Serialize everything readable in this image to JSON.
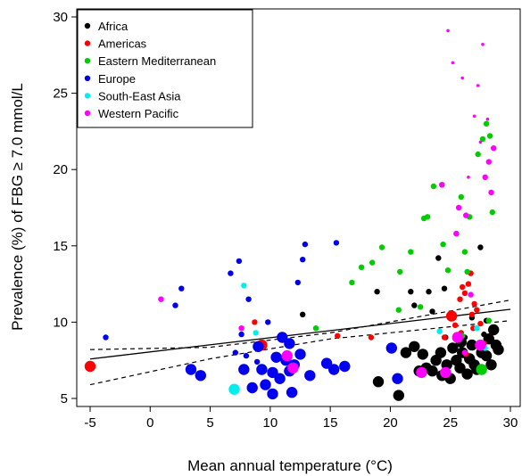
{
  "chart_data": {
    "type": "scatter",
    "title": "",
    "xlabel": "Mean annual temperature (°C)",
    "ylabel": "Prevalence (%) of FBG ≥ 7.0 mmol/L",
    "xlim": [
      -5,
      30
    ],
    "ylim": [
      5,
      30
    ],
    "xticks": [
      "-5",
      "0",
      "5",
      "10",
      "15",
      "20",
      "25",
      "30"
    ],
    "yticks": [
      "5",
      "10",
      "15",
      "20",
      "25",
      "30"
    ],
    "grid": false,
    "legend_position": "top-left",
    "regression": {
      "type": "linear",
      "intercept": 8.05,
      "slope": 0.093,
      "ci_lower": [
        [
          -5,
          5.9
        ],
        [
          5,
          7.6
        ],
        [
          15,
          8.9
        ],
        [
          30,
          10.1
        ]
      ],
      "ci_upper": [
        [
          -5,
          8.2
        ],
        [
          5,
          8.35
        ],
        [
          15,
          9.3
        ],
        [
          30,
          11.45
        ]
      ]
    },
    "series": [
      {
        "name": "Africa",
        "color": "#000000",
        "points": [
          [
            12.7,
            10.5,
            1
          ],
          [
            18.9,
            12.0,
            1
          ],
          [
            19.0,
            6.1,
            2
          ],
          [
            20.7,
            5.2,
            2
          ],
          [
            21.3,
            8.0,
            2
          ],
          [
            21.7,
            12.0,
            1
          ],
          [
            22.0,
            8.4,
            2
          ],
          [
            22.0,
            11.1,
            1
          ],
          [
            22.4,
            6.8,
            2
          ],
          [
            22.7,
            7.9,
            2
          ],
          [
            23.0,
            7.0,
            2
          ],
          [
            23.2,
            12.0,
            1
          ],
          [
            23.5,
            6.8,
            2
          ],
          [
            23.8,
            7.5,
            2
          ],
          [
            24.0,
            14.2,
            1
          ],
          [
            24.2,
            8.0,
            2
          ],
          [
            24.3,
            6.5,
            2
          ],
          [
            24.5,
            12.2,
            1
          ],
          [
            24.7,
            7.2,
            2
          ],
          [
            25.0,
            6.3,
            2
          ],
          [
            25.2,
            8.3,
            2
          ],
          [
            25.5,
            7.5,
            2
          ],
          [
            25.8,
            7.0,
            2
          ],
          [
            26.0,
            8.0,
            2
          ],
          [
            26.2,
            9.0,
            1
          ],
          [
            26.4,
            6.6,
            2
          ],
          [
            26.6,
            7.6,
            2
          ],
          [
            26.8,
            8.5,
            2
          ],
          [
            27.0,
            7.2,
            2
          ],
          [
            27.2,
            6.9,
            2
          ],
          [
            27.5,
            14.9,
            1
          ],
          [
            27.6,
            8.0,
            2
          ],
          [
            27.8,
            9.2,
            1
          ],
          [
            28.0,
            7.8,
            2
          ],
          [
            28.2,
            8.9,
            2
          ],
          [
            28.4,
            7.2,
            2
          ],
          [
            28.6,
            9.5,
            2
          ],
          [
            28.8,
            8.5,
            2
          ],
          [
            29.0,
            8.2,
            2
          ],
          [
            25.9,
            8.7,
            2
          ],
          [
            26.8,
            10.3,
            1
          ],
          [
            24.6,
            9.0,
            1
          ],
          [
            23.5,
            10.7,
            1
          ],
          [
            28.0,
            10.1,
            1
          ]
        ]
      },
      {
        "name": "Americas",
        "color": "#ff0000",
        "points": [
          [
            -5.0,
            7.1,
            2
          ],
          [
            8.7,
            10.0,
            1
          ],
          [
            9.3,
            8.5,
            2
          ],
          [
            15.6,
            9.1,
            1
          ],
          [
            18.4,
            9.0,
            1
          ],
          [
            24.5,
            9.0,
            1
          ],
          [
            25.1,
            10.4,
            2
          ],
          [
            25.4,
            9.8,
            1
          ],
          [
            25.8,
            11.5,
            1
          ],
          [
            26.0,
            12.3,
            1
          ],
          [
            26.2,
            11.9,
            1
          ],
          [
            26.5,
            12.5,
            1
          ],
          [
            26.7,
            13.2,
            1
          ],
          [
            26.8,
            10.5,
            1
          ],
          [
            27.0,
            11.2,
            1
          ],
          [
            27.2,
            10.8,
            1
          ],
          [
            27.5,
            9.9,
            1
          ],
          [
            25.9,
            9.3,
            1
          ],
          [
            26.3,
            7.9,
            1
          ],
          [
            26.9,
            9.6,
            1
          ],
          [
            27.8,
            8.6,
            1
          ]
        ]
      },
      {
        "name": "Eastern Mediterranean",
        "color": "#00cc00",
        "points": [
          [
            13.8,
            9.6,
            1
          ],
          [
            16.8,
            12.6,
            1
          ],
          [
            17.6,
            13.6,
            1
          ],
          [
            18.5,
            13.9,
            1
          ],
          [
            19.3,
            14.9,
            1
          ],
          [
            20.8,
            13.3,
            1
          ],
          [
            20.7,
            10.8,
            1
          ],
          [
            21.7,
            14.6,
            1
          ],
          [
            22.8,
            16.8,
            1
          ],
          [
            23.1,
            16.9,
            1
          ],
          [
            23.6,
            18.9,
            1
          ],
          [
            24.3,
            19.0,
            1
          ],
          [
            24.4,
            15.1,
            1
          ],
          [
            24.8,
            13.4,
            1
          ],
          [
            25.5,
            15.8,
            1
          ],
          [
            25.9,
            18.2,
            1
          ],
          [
            26.2,
            14.6,
            1
          ],
          [
            26.4,
            13.3,
            1
          ],
          [
            26.6,
            16.9,
            1
          ],
          [
            27.3,
            21.0,
            1
          ],
          [
            27.7,
            22.0,
            1
          ],
          [
            28.0,
            23.0,
            1
          ],
          [
            28.3,
            22.2,
            1
          ],
          [
            28.5,
            17.2,
            1
          ],
          [
            28.2,
            10.1,
            1
          ],
          [
            26.0,
            9.1,
            1
          ],
          [
            27.6,
            6.9,
            2
          ],
          [
            22.5,
            11.0,
            1
          ]
        ]
      },
      {
        "name": "Europe",
        "color": "#0000ee",
        "points": [
          [
            -3.7,
            9.0,
            1
          ],
          [
            2.1,
            11.1,
            1
          ],
          [
            2.6,
            12.2,
            1
          ],
          [
            3.4,
            6.9,
            2
          ],
          [
            4.2,
            6.5,
            2
          ],
          [
            6.7,
            13.2,
            1
          ],
          [
            7.1,
            8.0,
            1
          ],
          [
            7.4,
            14.0,
            1
          ],
          [
            7.6,
            9.2,
            1
          ],
          [
            7.8,
            6.9,
            2
          ],
          [
            8.0,
            7.8,
            1
          ],
          [
            8.2,
            11.5,
            1
          ],
          [
            8.5,
            5.7,
            2
          ],
          [
            9.0,
            8.4,
            2
          ],
          [
            9.3,
            6.9,
            2
          ],
          [
            9.6,
            5.9,
            2
          ],
          [
            9.8,
            10.0,
            1
          ],
          [
            10.2,
            5.3,
            2
          ],
          [
            10.5,
            7.7,
            2
          ],
          [
            10.8,
            6.3,
            2
          ],
          [
            11.0,
            9.0,
            2
          ],
          [
            11.3,
            7.5,
            2
          ],
          [
            11.6,
            6.8,
            2
          ],
          [
            11.8,
            5.4,
            2
          ],
          [
            12.0,
            7.2,
            2
          ],
          [
            12.3,
            12.6,
            1
          ],
          [
            12.5,
            7.9,
            2
          ],
          [
            12.7,
            14.1,
            1
          ],
          [
            12.9,
            15.1,
            1
          ],
          [
            13.3,
            6.5,
            2
          ],
          [
            14.7,
            7.3,
            2
          ],
          [
            15.5,
            15.2,
            1
          ],
          [
            15.3,
            6.9,
            2
          ],
          [
            16.2,
            7.1,
            2
          ],
          [
            20.1,
            8.3,
            2
          ],
          [
            20.6,
            6.3,
            2
          ],
          [
            11.6,
            8.6,
            2
          ],
          [
            10.2,
            6.7,
            2
          ],
          [
            8.9,
            7.4,
            1
          ]
        ]
      },
      {
        "name": "South-East Asia",
        "color": "#00eeee",
        "points": [
          [
            7.0,
            5.6,
            2
          ],
          [
            7.8,
            12.4,
            1
          ],
          [
            8.8,
            9.3,
            1
          ],
          [
            24.1,
            9.4,
            1
          ],
          [
            25.5,
            9.0,
            1
          ],
          [
            27.2,
            9.6,
            1
          ],
          [
            27.9,
            8.3,
            1
          ]
        ]
      },
      {
        "name": "Western Pacific",
        "color": "#ff00ff",
        "points": [
          [
            0.9,
            11.5,
            1
          ],
          [
            7.6,
            9.6,
            1
          ],
          [
            11.4,
            7.8,
            2
          ],
          [
            11.9,
            7.0,
            2
          ],
          [
            22.6,
            6.7,
            2
          ],
          [
            24.3,
            19.0,
            1
          ],
          [
            24.8,
            29.1,
            0
          ],
          [
            25.2,
            27.0,
            0
          ],
          [
            25.5,
            15.8,
            1
          ],
          [
            25.7,
            17.5,
            1
          ],
          [
            26.0,
            26.0,
            0
          ],
          [
            26.3,
            17.0,
            1
          ],
          [
            26.5,
            19.5,
            0
          ],
          [
            26.7,
            11.8,
            1
          ],
          [
            27.0,
            23.5,
            0
          ],
          [
            27.3,
            25.5,
            0
          ],
          [
            27.5,
            21.8,
            0
          ],
          [
            27.7,
            28.2,
            0
          ],
          [
            27.9,
            19.5,
            1
          ],
          [
            28.1,
            23.3,
            0
          ],
          [
            28.2,
            20.5,
            1
          ],
          [
            28.4,
            18.5,
            1
          ],
          [
            28.6,
            21.4,
            1
          ],
          [
            25.6,
            9.0,
            2
          ],
          [
            26.2,
            8.0,
            1
          ],
          [
            27.5,
            8.5,
            2
          ],
          [
            24.6,
            6.7,
            2
          ]
        ]
      }
    ]
  }
}
